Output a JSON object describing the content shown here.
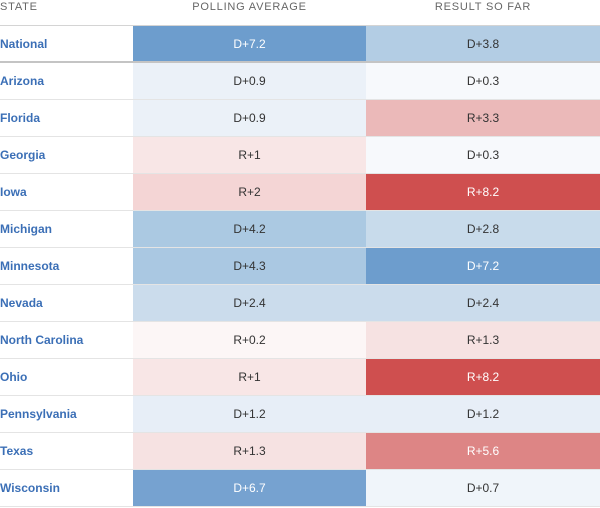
{
  "header": {
    "state": "STATE",
    "poll": "POLLING AVERAGE",
    "result": "RESULT SO FAR"
  },
  "rows": [
    {
      "state": "National",
      "poll": "D+7.2",
      "poll_color": "#6d9dcd",
      "poll_light": true,
      "result": "D+3.8",
      "result_color": "#b3cde4",
      "result_light": false
    },
    {
      "state": "Arizona",
      "poll": "D+0.9",
      "poll_color": "#ebf1f8",
      "poll_light": false,
      "result": "D+0.3",
      "result_color": "#f7f9fc",
      "result_light": false
    },
    {
      "state": "Florida",
      "poll": "D+0.9",
      "poll_color": "#ebf1f8",
      "poll_light": false,
      "result": "R+3.3",
      "result_color": "#ebb9b9",
      "result_light": false
    },
    {
      "state": "Georgia",
      "poll": "R+1",
      "poll_color": "#f8e6e6",
      "poll_light": false,
      "result": "D+0.3",
      "result_color": "#f7f9fc",
      "result_light": false
    },
    {
      "state": "Iowa",
      "poll": "R+2",
      "poll_color": "#f4d5d5",
      "poll_light": false,
      "result": "R+8.2",
      "result_color": "#cf4f4f",
      "result_light": true
    },
    {
      "state": "Michigan",
      "poll": "D+4.2",
      "poll_color": "#abc9e2",
      "poll_light": false,
      "result": "D+2.8",
      "result_color": "#c8dbeb",
      "result_light": false
    },
    {
      "state": "Minnesota",
      "poll": "D+4.3",
      "poll_color": "#aac8e2",
      "poll_light": false,
      "result": "D+7.2",
      "result_color": "#6d9dcd",
      "result_light": true
    },
    {
      "state": "Nevada",
      "poll": "D+2.4",
      "poll_color": "#cbdcec",
      "poll_light": false,
      "result": "D+2.4",
      "result_color": "#cbdcec",
      "result_light": false
    },
    {
      "state": "North Carolina",
      "poll": "R+0.2",
      "poll_color": "#fcf6f6",
      "poll_light": false,
      "result": "R+1.3",
      "result_color": "#f6e2e2",
      "result_light": false
    },
    {
      "state": "Ohio",
      "poll": "R+1",
      "poll_color": "#f8e6e6",
      "poll_light": false,
      "result": "R+8.2",
      "result_color": "#cf4f4f",
      "result_light": true
    },
    {
      "state": "Pennsylvania",
      "poll": "D+1.2",
      "poll_color": "#e7eef7",
      "poll_light": false,
      "result": "D+1.2",
      "result_color": "#e7eef7",
      "result_light": false
    },
    {
      "state": "Texas",
      "poll": "R+1.3",
      "poll_color": "#f6e2e2",
      "poll_light": false,
      "result": "R+5.6",
      "result_color": "#dd8585",
      "result_light": true
    },
    {
      "state": "Wisconsin",
      "poll": "D+6.7",
      "poll_color": "#76a2d0",
      "poll_light": true,
      "result": "D+0.7",
      "result_color": "#f0f5fa",
      "result_light": false
    }
  ]
}
